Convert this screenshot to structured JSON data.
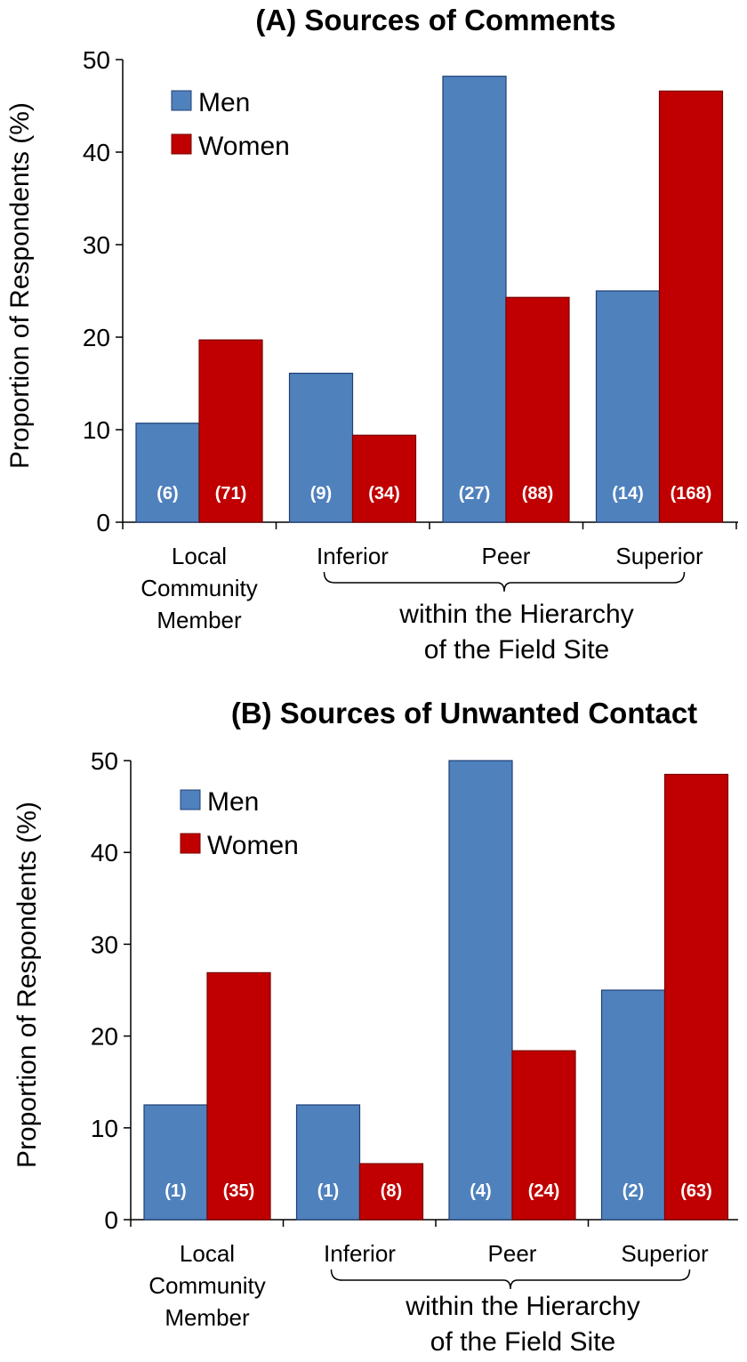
{
  "colors": {
    "men": "#4f81bd",
    "men_border": "#1f3f75",
    "women": "#c00000",
    "women_border": "#7a0000"
  },
  "chart_data": [
    {
      "type": "bar",
      "title": "(A) Sources of Comments",
      "ylabel": "Proportion of Respondents (%)",
      "ylim": [
        0,
        50
      ],
      "yticks": [
        0,
        10,
        20,
        30,
        40,
        50
      ],
      "categories": [
        "Local|Community|Member",
        "Inferior",
        "Peer",
        "Superior"
      ],
      "group_label": [
        "within the Hierarchy",
        "of the Field Site"
      ],
      "legend": [
        "Men",
        "Women"
      ],
      "legend_position": "top-left",
      "series": [
        {
          "name": "Men",
          "values": [
            10.7,
            16.1,
            48.2,
            25.0
          ],
          "counts": [
            "(6)",
            "(9)",
            "(27)",
            "(14)"
          ]
        },
        {
          "name": "Women",
          "values": [
            19.7,
            9.4,
            24.3,
            46.6
          ],
          "counts": [
            "(71)",
            "(34)",
            "(88)",
            "(168)"
          ]
        }
      ]
    },
    {
      "type": "bar",
      "title": "(B) Sources of Unwanted Contact",
      "ylabel": "Proportion of Respondents (%)",
      "ylim": [
        0,
        50
      ],
      "yticks": [
        0,
        10,
        20,
        30,
        40,
        50
      ],
      "categories": [
        "Local|Community|Member",
        "Inferior",
        "Peer",
        "Superior"
      ],
      "group_label": [
        "within the Hierarchy",
        "of the Field Site"
      ],
      "legend": [
        "Men",
        "Women"
      ],
      "legend_position": "top-left",
      "series": [
        {
          "name": "Men",
          "values": [
            12.5,
            12.5,
            50.0,
            25.0
          ],
          "counts": [
            "(1)",
            "(1)",
            "(4)",
            "(2)"
          ]
        },
        {
          "name": "Women",
          "values": [
            26.9,
            6.1,
            18.4,
            48.5
          ],
          "counts": [
            "(35)",
            "(8)",
            "(24)",
            "(63)"
          ]
        }
      ]
    }
  ]
}
